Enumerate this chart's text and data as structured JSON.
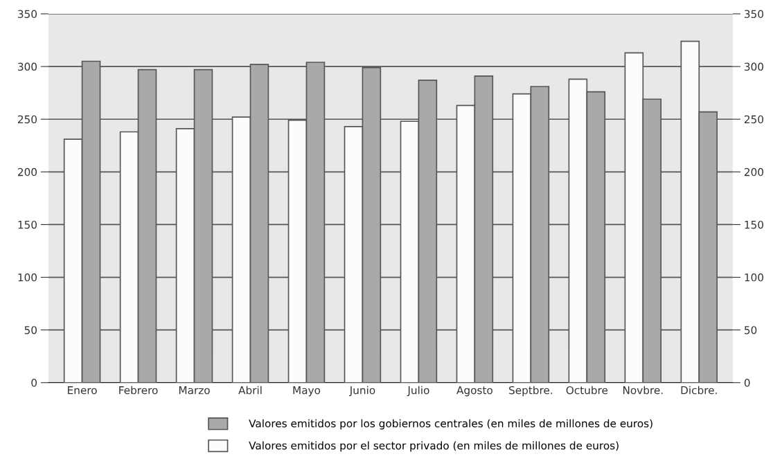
{
  "chart_data": {
    "type": "bar",
    "categories": [
      "Enero",
      "Febrero",
      "Marzo",
      "Abril",
      "Mayo",
      "Junio",
      "Julio",
      "Agosto",
      "Septbre.",
      "Octubre",
      "Novbre.",
      "Dicbre."
    ],
    "series": [
      {
        "name": "Valores emitidos por el sector privado (en miles de millones de euros)",
        "color": "#fcfcfc",
        "values": [
          231,
          238,
          241,
          252,
          249,
          243,
          248,
          263,
          274,
          288,
          313,
          324
        ]
      },
      {
        "name": "Valores emitidos por los gobiernos centrales (en miles de millones de euros)",
        "color": "#a9a9a9",
        "values": [
          305,
          297,
          297,
          302,
          304,
          299,
          287,
          291,
          281,
          276,
          269,
          257
        ]
      }
    ],
    "ylim": [
      0,
      350
    ],
    "yticks": [
      0,
      50,
      100,
      150,
      200,
      250,
      300,
      350
    ],
    "y2lim": [
      0,
      350
    ],
    "y2ticks": [
      0,
      50,
      100,
      150,
      200,
      250,
      300,
      350
    ],
    "grid": "y",
    "legend": "bottom"
  }
}
